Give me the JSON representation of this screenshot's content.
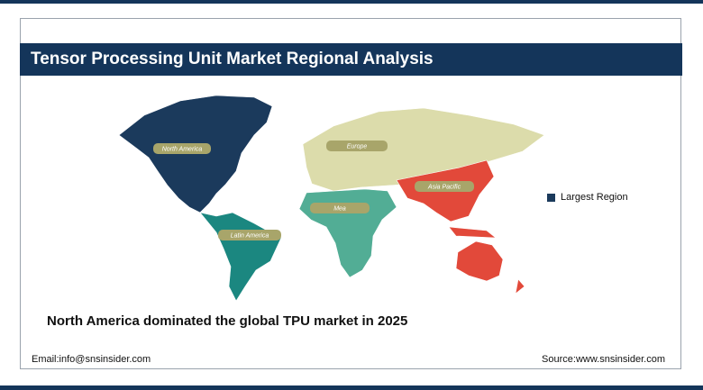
{
  "header": {
    "title": "Tensor Processing Unit Market Regional Analysis"
  },
  "map": {
    "regions": [
      {
        "label": "North America",
        "color": "#1b3a5c"
      },
      {
        "label": "Europe",
        "color": "#dcdcab"
      },
      {
        "label": "Asia Pacific",
        "color": "#e2493a"
      },
      {
        "label": "Mea",
        "color": "#52ad95"
      },
      {
        "label": "Latin America",
        "color": "#1b8780"
      }
    ],
    "legend": {
      "label": "Largest Region",
      "color": "#1b3a5c"
    }
  },
  "headline": "North America dominated the global TPU market in 2025",
  "footer": {
    "email": "Email:info@snsinsider.com",
    "source": "Source:www.snsinsider.com"
  }
}
